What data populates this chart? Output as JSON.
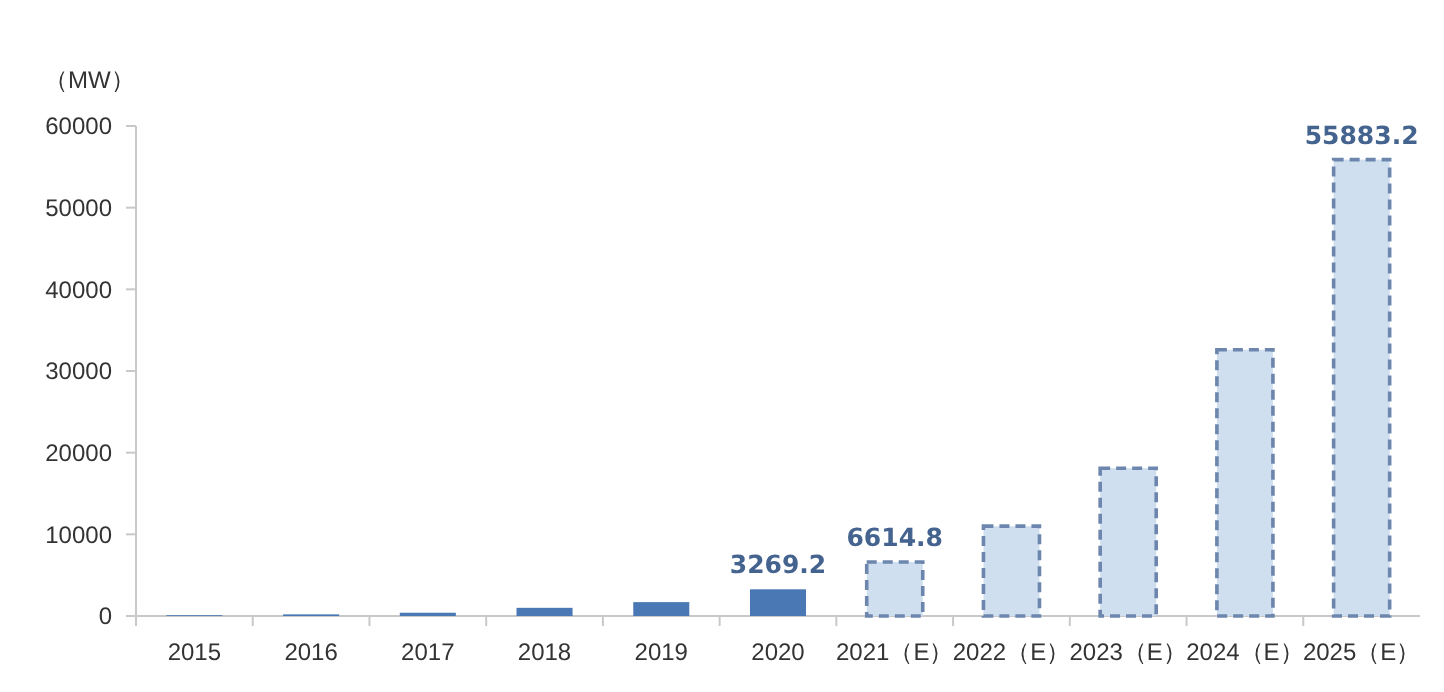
{
  "chart_data": {
    "type": "bar",
    "ylabel": "（MW）",
    "categories": [
      "2015",
      "2016",
      "2017",
      "2018",
      "2019",
      "2020",
      "2021（E）",
      "2022（E）",
      "2023（E）",
      "2024（E）",
      "2025（E）"
    ],
    "ylim": [
      0,
      60000
    ],
    "yticks": [
      0,
      10000,
      20000,
      30000,
      40000,
      50000,
      60000
    ],
    "grid": false,
    "series": [
      {
        "color": "#4a78b5",
        "line_style": "solid",
        "values": [
          100,
          200,
          400,
          1000,
          1700,
          3269.2,
          null,
          null,
          null,
          null,
          null
        ],
        "value_labels": [
          null,
          null,
          null,
          null,
          null,
          "3269.2",
          null,
          null,
          null,
          null,
          null
        ]
      },
      {
        "color": "#cfdff0",
        "line_style": "dashed",
        "values": [
          null,
          null,
          null,
          null,
          null,
          null,
          6614.8,
          11000,
          18100,
          32600,
          55883.2
        ],
        "value_labels": [
          null,
          null,
          null,
          null,
          null,
          null,
          "6614.8",
          null,
          null,
          null,
          "55883.2"
        ]
      }
    ]
  }
}
